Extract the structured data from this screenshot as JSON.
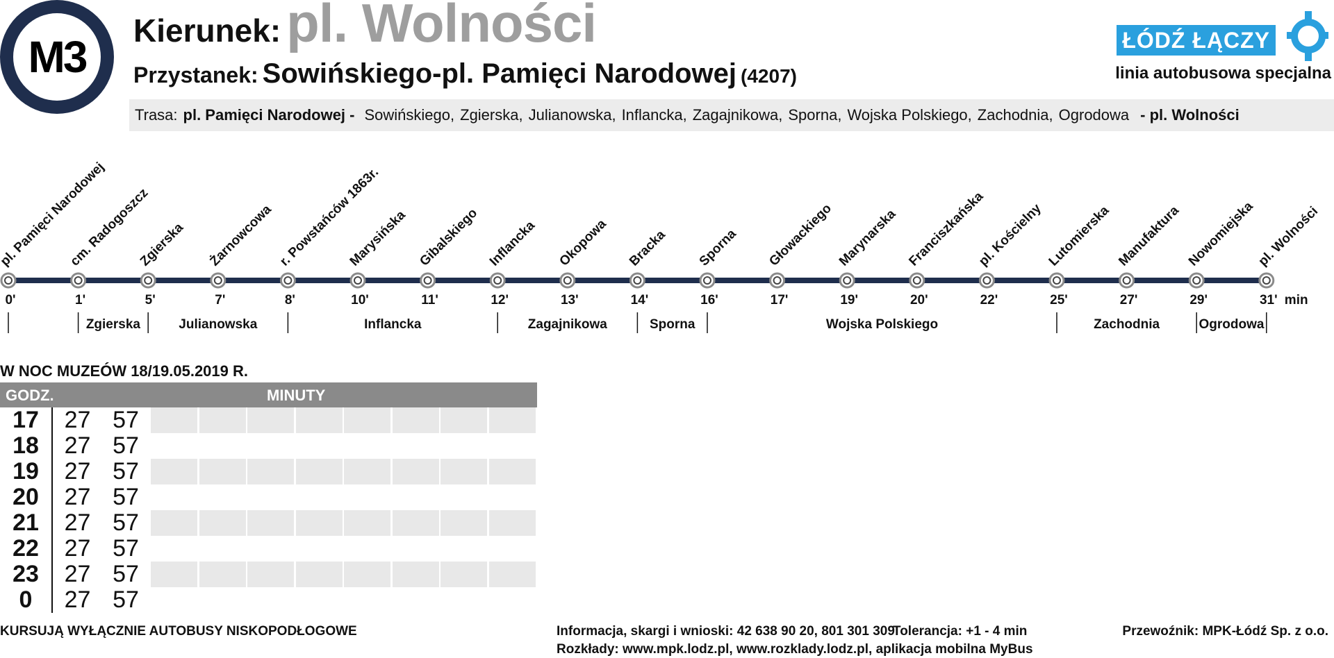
{
  "header": {
    "line": "M3",
    "direction_label": "Kierunek:",
    "direction_value": "pl. Wolności",
    "stop_label": "Przystanek:",
    "stop_value": "Sowińskiego-pl. Pamięci Narodowej",
    "stop_code": "(4207)",
    "brand": "ŁÓDŹ ŁĄCZY",
    "brand_subtitle": "linia autobusowa specjalna",
    "brand_color": "#2aa0de",
    "badge_color": "#1f2e4d"
  },
  "route": {
    "label": "Trasa:",
    "start": "pl. Pamięci Narodowej -",
    "streets": [
      "Sowińskiego,",
      "Zgierska,",
      "Julianowska,",
      "Inflancka,",
      "Zagajnikowa,",
      "Sporna,",
      "Wojska Polskiego,",
      "Zachodnia,",
      "Ogrodowa"
    ],
    "end": "- pl. Wolności"
  },
  "diagram": {
    "unit": "min",
    "line_color": "#1f2e4d",
    "stops": [
      {
        "name": "pl. Pamięci Narodowej",
        "time": "0'"
      },
      {
        "name": "cm. Radogoszcz",
        "time": "1'"
      },
      {
        "name": "Zgierska",
        "time": "5'"
      },
      {
        "name": "Żarnowcowa",
        "time": "7'"
      },
      {
        "name": "r. Powstańców 1863r.",
        "time": "8'"
      },
      {
        "name": "Marysińska",
        "time": "10'"
      },
      {
        "name": "Gibalskiego",
        "time": "11'"
      },
      {
        "name": "Inflancka",
        "time": "12'"
      },
      {
        "name": "Okopowa",
        "time": "13'"
      },
      {
        "name": "Bracka",
        "time": "14'"
      },
      {
        "name": "Sporna",
        "time": "16'"
      },
      {
        "name": "Głowackiego",
        "time": "17'"
      },
      {
        "name": "Marynarska",
        "time": "19'"
      },
      {
        "name": "Franciszkańska",
        "time": "20'"
      },
      {
        "name": "pl. Kościelny",
        "time": "22'"
      },
      {
        "name": "Lutomierska",
        "time": "25'"
      },
      {
        "name": "Manufaktura",
        "time": "27'"
      },
      {
        "name": "Nowomiejska",
        "time": "29'"
      },
      {
        "name": "pl. Wolności",
        "time": "31'"
      }
    ],
    "streets": [
      {
        "name": "Zgierska",
        "from": 1,
        "to": 2
      },
      {
        "name": "Julianowska",
        "from": 2,
        "to": 4
      },
      {
        "name": "Inflancka",
        "from": 4,
        "to": 7
      },
      {
        "name": "Zagajnikowa",
        "from": 7,
        "to": 9
      },
      {
        "name": "Sporna",
        "from": 9,
        "to": 10
      },
      {
        "name": "Wojska Polskiego",
        "from": 10,
        "to": 15
      },
      {
        "name": "Zachodnia",
        "from": 15,
        "to": 17
      },
      {
        "name": "Ogrodowa",
        "from": 17,
        "to": 18
      }
    ]
  },
  "timetable": {
    "title": "W NOC MUZEÓW 18/19.05.2019 R.",
    "hour_header": "GODZ.",
    "minutes_header": "MINUTY",
    "rows": [
      {
        "hour": "17",
        "minutes": [
          "27",
          "57"
        ]
      },
      {
        "hour": "18",
        "minutes": [
          "27",
          "57"
        ]
      },
      {
        "hour": "19",
        "minutes": [
          "27",
          "57"
        ]
      },
      {
        "hour": "20",
        "minutes": [
          "27",
          "57"
        ]
      },
      {
        "hour": "21",
        "minutes": [
          "27",
          "57"
        ]
      },
      {
        "hour": "22",
        "minutes": [
          "27",
          "57"
        ]
      },
      {
        "hour": "23",
        "minutes": [
          "27",
          "57"
        ]
      },
      {
        "hour": "0",
        "minutes": [
          "27",
          "57"
        ]
      }
    ]
  },
  "footer": {
    "low_floor": "KURSUJĄ WYŁĄCZNIE AUTOBUSY NISKOPODŁOGOWE",
    "info": "Informacja, skargi i wnioski: 42 638 90 20, 801 301 309",
    "tolerance": "Tolerancja: +1 - 4 min",
    "carrier": "Przewoźnik: MPK-Łódź Sp. z o.o.",
    "schedules": "Rozkłady: www.mpk.lodz.pl, www.rozklady.lodz.pl, aplikacja mobilna MyBus"
  }
}
